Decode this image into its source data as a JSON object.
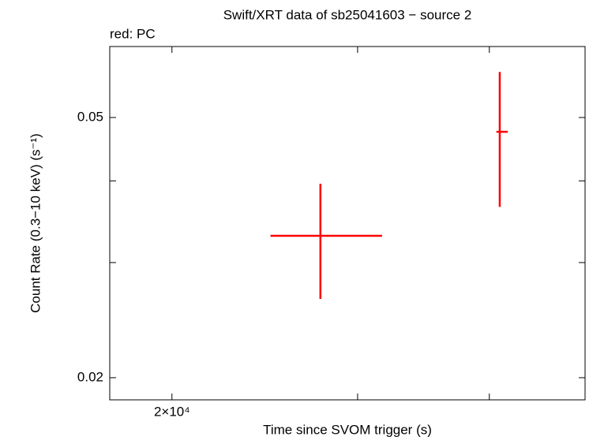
{
  "chart_data": {
    "type": "errorbar",
    "title": "Swift/XRT data of sb25041603 − source 2",
    "x_label": "Time since SVOM trigger (s)",
    "y_label": "Count Rate (0.3−10 keV) (s⁻¹)",
    "xscale": "log",
    "yscale": "log",
    "xlim": [
      17460,
      49300
    ],
    "ylim": [
      0.0185,
      0.0642
    ],
    "xticks": [
      {
        "value": 20000,
        "label": "2×10⁴"
      }
    ],
    "minor_xticks": [
      30000,
      40000
    ],
    "yticks": [
      0.02,
      0.05
    ],
    "minor_yticks": [
      0.03,
      0.04
    ],
    "series": [
      {
        "name": "red: PC",
        "color": "#ff0000",
        "x": [
          27660,
          40920
        ],
        "x_low": [
          24800,
          40620
        ],
        "x_high": [
          31650,
          41640
        ],
        "values": [
          0.03296,
          0.04755
        ],
        "y_low": [
          0.0264,
          0.0365
        ],
        "y_high": [
          0.0396,
          0.0587
        ]
      }
    ]
  }
}
